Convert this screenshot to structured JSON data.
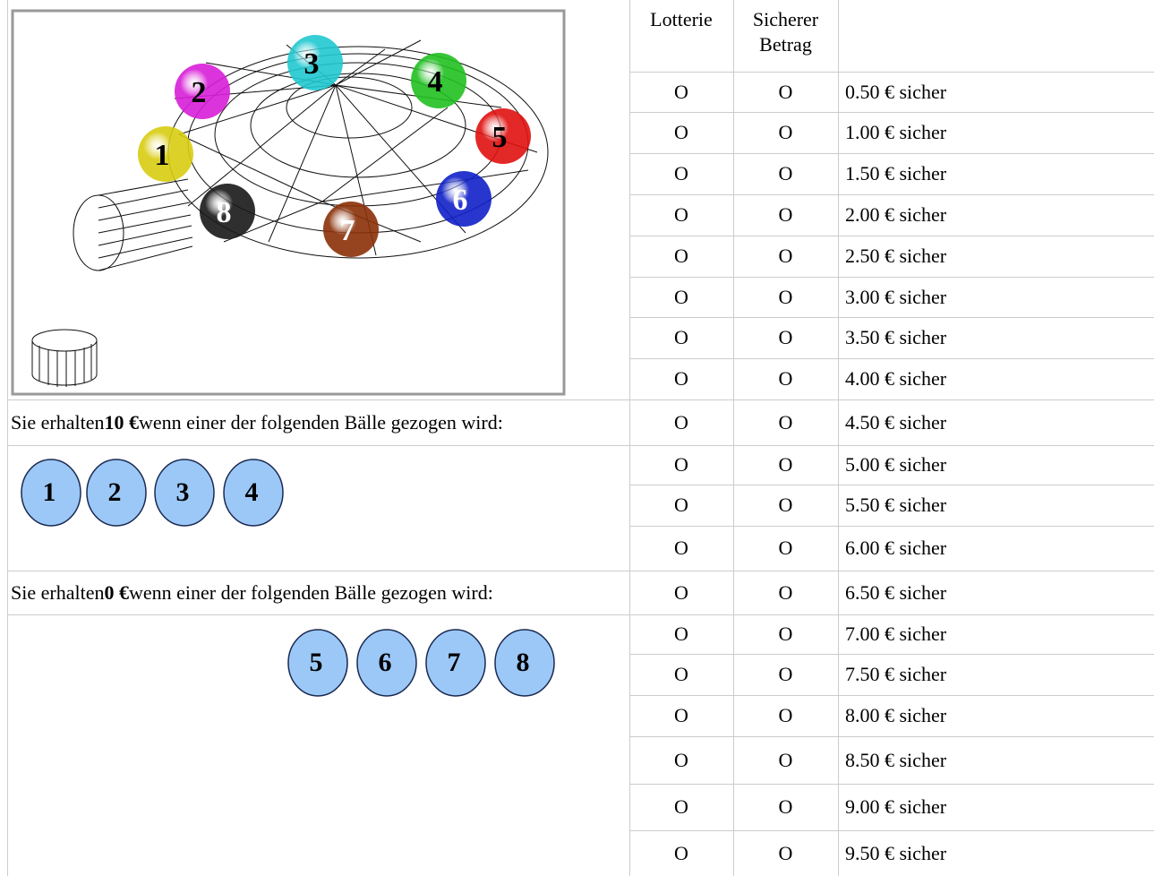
{
  "table": {
    "header": [
      "Lotterie",
      "Sicherer Betrag"
    ],
    "rows": [
      [
        "O",
        "O",
        "0.50 € sicher"
      ],
      [
        "O",
        "O",
        "1.00 € sicher"
      ],
      [
        "O",
        "O",
        "1.50 € sicher"
      ],
      [
        "O",
        "O",
        "2.00 € sicher"
      ],
      [
        "O",
        "O",
        "2.50 € sicher"
      ],
      [
        "O",
        "O",
        "3.00 € sicher"
      ],
      [
        "O",
        "O",
        "3.50 € sicher"
      ],
      [
        "O",
        "O",
        "4.00 € sicher"
      ],
      [
        "O",
        "O",
        "4.50 € sicher"
      ],
      [
        "O",
        "O",
        "5.00 € sicher"
      ],
      [
        "O",
        "O",
        "5.50 € sicher"
      ],
      [
        "O",
        "O",
        "6.00 € sicher"
      ],
      [
        "O",
        "O",
        "6.50 € sicher"
      ],
      [
        "O",
        "O",
        "7.00 € sicher"
      ],
      [
        "O",
        "O",
        "7.50 € sicher"
      ],
      [
        "O",
        "O",
        "8.00 € sicher"
      ],
      [
        "O",
        "O",
        "8.50 € sicher"
      ],
      [
        "O",
        "O",
        "9.00 € sicher"
      ],
      [
        "O",
        "O",
        "9.50 € sicher"
      ]
    ]
  },
  "win_text": {
    "before": "Sie erhalten",
    "amount": "10 €",
    "after": "wenn einer der folgenden Bälle gezogen wird:"
  },
  "win_balls": [
    "1",
    "2",
    "3",
    "4"
  ],
  "lose_text": {
    "before": "Sie erhalten",
    "amount": "0 €",
    "after": "wenn einer der folgenden Bälle gezogen wird:"
  },
  "lose_balls": [
    "5",
    "6",
    "7",
    "8"
  ],
  "drum": {
    "balls": [
      {
        "label": "1",
        "color": "#d8cc10"
      },
      {
        "label": "2",
        "color": "#d81ed8"
      },
      {
        "label": "3",
        "color": "#20c8d0"
      },
      {
        "label": "4",
        "color": "#20c020"
      },
      {
        "label": "5",
        "color": "#e01010"
      },
      {
        "label": "6",
        "color": "#1020c8"
      },
      {
        "label": "7",
        "color": "#8a3008"
      },
      {
        "label": "8",
        "color": "#181818"
      }
    ]
  }
}
